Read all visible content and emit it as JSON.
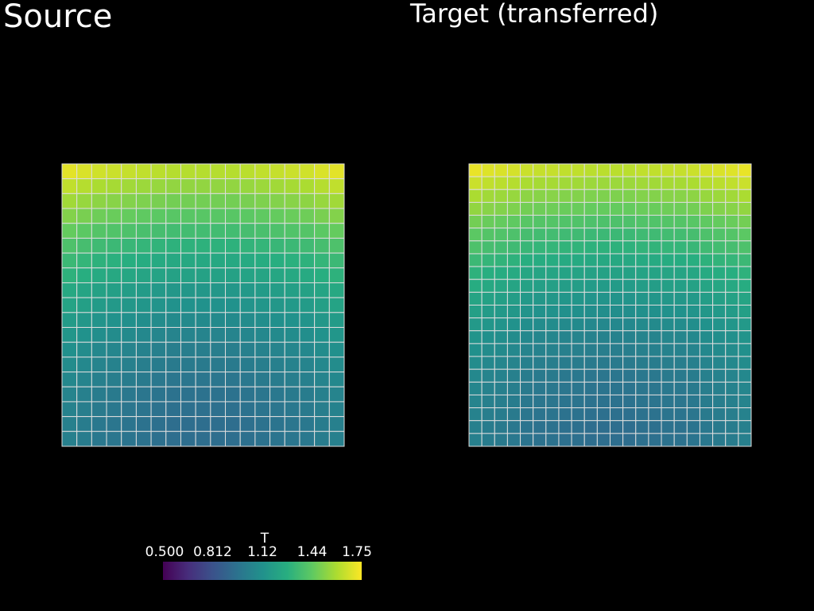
{
  "meshes": [
    {
      "title": "Source",
      "values": [
        [
          1.7,
          1.68,
          1.66,
          1.65,
          1.64,
          1.63,
          1.62,
          1.61,
          1.61,
          1.61,
          1.61,
          1.61,
          1.62,
          1.63,
          1.64,
          1.65,
          1.66,
          1.68,
          1.7
        ],
        [
          1.63,
          1.61,
          1.59,
          1.58,
          1.57,
          1.56,
          1.55,
          1.54,
          1.54,
          1.54,
          1.54,
          1.54,
          1.55,
          1.56,
          1.57,
          1.58,
          1.59,
          1.61,
          1.63
        ],
        [
          1.57,
          1.55,
          1.53,
          1.52,
          1.51,
          1.5,
          1.49,
          1.48,
          1.48,
          1.48,
          1.48,
          1.48,
          1.49,
          1.5,
          1.51,
          1.52,
          1.53,
          1.55,
          1.57
        ],
        [
          1.51,
          1.49,
          1.47,
          1.46,
          1.45,
          1.44,
          1.43,
          1.42,
          1.42,
          1.42,
          1.42,
          1.42,
          1.43,
          1.44,
          1.45,
          1.46,
          1.47,
          1.49,
          1.51
        ],
        [
          1.45,
          1.43,
          1.41,
          1.4,
          1.39,
          1.38,
          1.37,
          1.36,
          1.36,
          1.36,
          1.36,
          1.36,
          1.37,
          1.38,
          1.39,
          1.4,
          1.41,
          1.43,
          1.45
        ],
        [
          1.39,
          1.37,
          1.35,
          1.34,
          1.33,
          1.32,
          1.31,
          1.3,
          1.3,
          1.3,
          1.3,
          1.3,
          1.31,
          1.32,
          1.33,
          1.34,
          1.35,
          1.37,
          1.39
        ],
        [
          1.34,
          1.32,
          1.3,
          1.29,
          1.28,
          1.27,
          1.26,
          1.25,
          1.25,
          1.25,
          1.25,
          1.25,
          1.26,
          1.27,
          1.28,
          1.29,
          1.3,
          1.32,
          1.34
        ],
        [
          1.3,
          1.28,
          1.26,
          1.25,
          1.24,
          1.23,
          1.22,
          1.21,
          1.21,
          1.21,
          1.21,
          1.21,
          1.22,
          1.23,
          1.24,
          1.25,
          1.26,
          1.28,
          1.3
        ],
        [
          1.25,
          1.23,
          1.21,
          1.2,
          1.19,
          1.18,
          1.17,
          1.16,
          1.16,
          1.16,
          1.16,
          1.16,
          1.17,
          1.18,
          1.19,
          1.2,
          1.21,
          1.23,
          1.25
        ],
        [
          1.22,
          1.2,
          1.18,
          1.17,
          1.16,
          1.15,
          1.14,
          1.13,
          1.13,
          1.13,
          1.13,
          1.13,
          1.14,
          1.15,
          1.16,
          1.17,
          1.18,
          1.2,
          1.22
        ],
        [
          1.18,
          1.16,
          1.14,
          1.13,
          1.12,
          1.11,
          1.1,
          1.09,
          1.09,
          1.09,
          1.09,
          1.09,
          1.1,
          1.11,
          1.12,
          1.13,
          1.14,
          1.16,
          1.18
        ],
        [
          1.15,
          1.13,
          1.11,
          1.1,
          1.09,
          1.08,
          1.07,
          1.06,
          1.06,
          1.06,
          1.06,
          1.06,
          1.07,
          1.08,
          1.09,
          1.1,
          1.11,
          1.13,
          1.15
        ],
        [
          1.12,
          1.1,
          1.08,
          1.07,
          1.06,
          1.05,
          1.04,
          1.03,
          1.03,
          1.03,
          1.03,
          1.03,
          1.04,
          1.05,
          1.06,
          1.07,
          1.08,
          1.1,
          1.12
        ],
        [
          1.1,
          1.08,
          1.06,
          1.05,
          1.04,
          1.03,
          1.02,
          1.01,
          1.01,
          1.01,
          1.01,
          1.01,
          1.02,
          1.03,
          1.04,
          1.05,
          1.06,
          1.08,
          1.1
        ],
        [
          1.08,
          1.06,
          1.04,
          1.03,
          1.02,
          1.01,
          1.0,
          0.99,
          0.99,
          0.99,
          0.99,
          0.99,
          1.0,
          1.01,
          1.02,
          1.03,
          1.04,
          1.06,
          1.08
        ],
        [
          1.06,
          1.04,
          1.02,
          1.01,
          1.0,
          0.99,
          0.98,
          0.97,
          0.97,
          0.97,
          0.97,
          0.97,
          0.98,
          0.99,
          1.0,
          1.01,
          1.02,
          1.04,
          1.06
        ],
        [
          1.05,
          1.03,
          1.01,
          1.0,
          0.99,
          0.98,
          0.97,
          0.96,
          0.96,
          0.96,
          0.96,
          0.96,
          0.97,
          0.98,
          0.99,
          1.0,
          1.01,
          1.03,
          1.05
        ],
        [
          1.04,
          1.02,
          1.0,
          0.99,
          0.98,
          0.97,
          0.96,
          0.95,
          0.95,
          0.95,
          0.95,
          0.95,
          0.96,
          0.97,
          0.98,
          0.99,
          1.0,
          1.02,
          1.04
        ],
        [
          1.04,
          1.02,
          1.0,
          0.99,
          0.98,
          0.97,
          0.96,
          0.95,
          0.95,
          0.95,
          0.95,
          0.95,
          0.96,
          0.97,
          0.98,
          0.99,
          1.0,
          1.02,
          1.04
        ]
      ]
    },
    {
      "title": "Target (transferred)",
      "values": [
        [
          1.71,
          1.69,
          1.68,
          1.67,
          1.65,
          1.64,
          1.64,
          1.63,
          1.63,
          1.62,
          1.62,
          1.62,
          1.62,
          1.63,
          1.63,
          1.64,
          1.64,
          1.65,
          1.67,
          1.68,
          1.69,
          1.71
        ],
        [
          1.65,
          1.63,
          1.62,
          1.61,
          1.59,
          1.58,
          1.58,
          1.57,
          1.57,
          1.56,
          1.56,
          1.56,
          1.56,
          1.57,
          1.57,
          1.58,
          1.58,
          1.59,
          1.61,
          1.62,
          1.63,
          1.65
        ],
        [
          1.59,
          1.57,
          1.56,
          1.55,
          1.53,
          1.52,
          1.52,
          1.51,
          1.51,
          1.5,
          1.5,
          1.5,
          1.5,
          1.51,
          1.51,
          1.52,
          1.52,
          1.53,
          1.55,
          1.56,
          1.57,
          1.59
        ],
        [
          1.54,
          1.52,
          1.51,
          1.5,
          1.48,
          1.47,
          1.47,
          1.46,
          1.46,
          1.45,
          1.45,
          1.45,
          1.45,
          1.46,
          1.46,
          1.47,
          1.47,
          1.48,
          1.5,
          1.51,
          1.52,
          1.54
        ],
        [
          1.48,
          1.46,
          1.45,
          1.44,
          1.42,
          1.41,
          1.41,
          1.4,
          1.4,
          1.39,
          1.39,
          1.39,
          1.39,
          1.4,
          1.4,
          1.41,
          1.41,
          1.42,
          1.44,
          1.45,
          1.46,
          1.48
        ],
        [
          1.43,
          1.41,
          1.4,
          1.39,
          1.37,
          1.36,
          1.36,
          1.35,
          1.35,
          1.34,
          1.34,
          1.34,
          1.34,
          1.35,
          1.35,
          1.36,
          1.36,
          1.37,
          1.39,
          1.4,
          1.41,
          1.43
        ],
        [
          1.39,
          1.37,
          1.36,
          1.35,
          1.33,
          1.32,
          1.32,
          1.31,
          1.31,
          1.3,
          1.3,
          1.3,
          1.3,
          1.31,
          1.31,
          1.32,
          1.32,
          1.33,
          1.35,
          1.36,
          1.37,
          1.39
        ],
        [
          1.34,
          1.32,
          1.31,
          1.3,
          1.28,
          1.27,
          1.27,
          1.26,
          1.26,
          1.25,
          1.25,
          1.25,
          1.25,
          1.26,
          1.26,
          1.27,
          1.27,
          1.28,
          1.3,
          1.31,
          1.32,
          1.34
        ],
        [
          1.3,
          1.28,
          1.27,
          1.26,
          1.24,
          1.23,
          1.23,
          1.22,
          1.22,
          1.21,
          1.21,
          1.21,
          1.21,
          1.22,
          1.22,
          1.23,
          1.23,
          1.24,
          1.26,
          1.27,
          1.28,
          1.3
        ],
        [
          1.27,
          1.25,
          1.24,
          1.23,
          1.21,
          1.2,
          1.2,
          1.19,
          1.19,
          1.18,
          1.18,
          1.18,
          1.18,
          1.19,
          1.19,
          1.2,
          1.2,
          1.21,
          1.23,
          1.24,
          1.25,
          1.27
        ],
        [
          1.23,
          1.21,
          1.2,
          1.19,
          1.17,
          1.16,
          1.16,
          1.15,
          1.15,
          1.14,
          1.14,
          1.14,
          1.14,
          1.15,
          1.15,
          1.16,
          1.16,
          1.17,
          1.19,
          1.2,
          1.21,
          1.23
        ],
        [
          1.2,
          1.18,
          1.17,
          1.16,
          1.14,
          1.13,
          1.13,
          1.12,
          1.12,
          1.11,
          1.11,
          1.11,
          1.11,
          1.12,
          1.12,
          1.13,
          1.13,
          1.14,
          1.16,
          1.17,
          1.18,
          1.2
        ],
        [
          1.17,
          1.15,
          1.14,
          1.13,
          1.11,
          1.1,
          1.1,
          1.09,
          1.09,
          1.08,
          1.08,
          1.08,
          1.08,
          1.09,
          1.09,
          1.1,
          1.1,
          1.11,
          1.13,
          1.14,
          1.15,
          1.17
        ],
        [
          1.14,
          1.12,
          1.11,
          1.1,
          1.08,
          1.07,
          1.07,
          1.06,
          1.06,
          1.05,
          1.05,
          1.05,
          1.05,
          1.06,
          1.06,
          1.07,
          1.07,
          1.08,
          1.1,
          1.11,
          1.12,
          1.14
        ],
        [
          1.12,
          1.1,
          1.09,
          1.08,
          1.06,
          1.05,
          1.05,
          1.04,
          1.04,
          1.03,
          1.03,
          1.03,
          1.03,
          1.04,
          1.04,
          1.05,
          1.05,
          1.06,
          1.08,
          1.09,
          1.1,
          1.12
        ],
        [
          1.1,
          1.08,
          1.07,
          1.06,
          1.04,
          1.03,
          1.03,
          1.02,
          1.02,
          1.01,
          1.01,
          1.01,
          1.01,
          1.02,
          1.02,
          1.03,
          1.03,
          1.04,
          1.06,
          1.07,
          1.08,
          1.1
        ],
        [
          1.08,
          1.06,
          1.05,
          1.04,
          1.02,
          1.01,
          1.01,
          1.0,
          1.0,
          0.99,
          0.99,
          0.99,
          0.99,
          1.0,
          1.0,
          1.01,
          1.01,
          1.02,
          1.04,
          1.05,
          1.06,
          1.08
        ],
        [
          1.07,
          1.05,
          1.04,
          1.03,
          1.01,
          1.0,
          1.0,
          0.99,
          0.99,
          0.98,
          0.98,
          0.98,
          0.98,
          0.99,
          0.99,
          1.0,
          1.0,
          1.01,
          1.03,
          1.04,
          1.05,
          1.07
        ],
        [
          1.06,
          1.04,
          1.03,
          1.02,
          1.0,
          0.99,
          0.99,
          0.98,
          0.98,
          0.97,
          0.97,
          0.97,
          0.97,
          0.98,
          0.98,
          0.99,
          0.99,
          1.0,
          1.02,
          1.03,
          1.04,
          1.06
        ],
        [
          1.05,
          1.03,
          1.02,
          1.01,
          0.99,
          0.98,
          0.98,
          0.97,
          0.97,
          0.96,
          0.96,
          0.96,
          0.96,
          0.97,
          0.97,
          0.98,
          0.98,
          0.99,
          1.01,
          1.02,
          1.03,
          1.05
        ],
        [
          1.04,
          1.02,
          1.01,
          1.0,
          0.98,
          0.97,
          0.97,
          0.96,
          0.96,
          0.95,
          0.95,
          0.95,
          0.95,
          0.96,
          0.96,
          0.97,
          0.97,
          0.98,
          1.0,
          1.01,
          1.02,
          1.04
        ],
        [
          1.04,
          1.02,
          1.01,
          1.0,
          0.98,
          0.97,
          0.97,
          0.96,
          0.96,
          0.95,
          0.95,
          0.95,
          0.95,
          0.96,
          0.96,
          0.97,
          0.97,
          0.98,
          1.0,
          1.01,
          1.02,
          1.04
        ]
      ]
    }
  ],
  "colorbar": {
    "title": "T",
    "clim": [
      0.5,
      1.75
    ],
    "ticks": [
      {
        "value": 0.5,
        "label": "0.500"
      },
      {
        "value": 0.8125,
        "label": "0.812"
      },
      {
        "value": 1.125,
        "label": "1.12"
      },
      {
        "value": 1.4375,
        "label": "1.44"
      },
      1.75
    ],
    "colors": [
      "#440154",
      "#472d7b",
      "#3b528b",
      "#2c728e",
      "#21918c",
      "#28ae80",
      "#5ec962",
      "#addc30",
      "#fde725"
    ]
  },
  "edge_color": "#dddddd"
}
